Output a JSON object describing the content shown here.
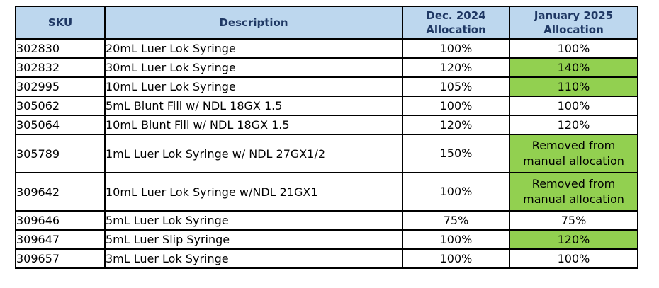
{
  "table": {
    "colors": {
      "header_bg": "#BDD7EE",
      "header_text": "#1F3864",
      "highlight_green": "#92D050",
      "border": "#000000"
    },
    "headers": {
      "sku": "SKU",
      "description": "Description",
      "dec": "Dec. 2024\nAllocation",
      "jan": "January 2025\nAllocation"
    },
    "rows": [
      {
        "sku": "302830",
        "description": "20mL Luer Lok Syringe",
        "dec": "100%",
        "jan": "100%",
        "jan_highlight": false,
        "tall": false
      },
      {
        "sku": "302832",
        "description": "30mL Luer Lok Syringe",
        "dec": "120%",
        "jan": "140%",
        "jan_highlight": true,
        "tall": false
      },
      {
        "sku": "302995",
        "description": "10mL Luer Lok Syringe",
        "dec": "105%",
        "jan": "110%",
        "jan_highlight": true,
        "tall": false
      },
      {
        "sku": "305062",
        "description": "5mL Blunt Fill w/ NDL 18GX 1.5",
        "dec": "100%",
        "jan": "100%",
        "jan_highlight": false,
        "tall": false
      },
      {
        "sku": "305064",
        "description": "10mL Blunt Fill w/ NDL 18GX 1.5",
        "dec": "120%",
        "jan": "120%",
        "jan_highlight": false,
        "tall": false
      },
      {
        "sku": "305789",
        "description": "1mL Luer Lok Syringe w/ NDL 27GX1/2",
        "dec": "150%",
        "jan": "Removed from\nmanual allocation",
        "jan_highlight": true,
        "tall": true
      },
      {
        "sku": "309642",
        "description": "10mL Luer Lok Syringe w/NDL 21GX1",
        "dec": "100%",
        "jan": "Removed from\nmanual allocation",
        "jan_highlight": true,
        "tall": true
      },
      {
        "sku": "309646",
        "description": "5mL Luer Lok Syringe",
        "dec": "75%",
        "jan": "75%",
        "jan_highlight": false,
        "tall": false
      },
      {
        "sku": "309647",
        "description": "5mL Luer Slip Syringe",
        "dec": "100%",
        "jan": "120%",
        "jan_highlight": true,
        "tall": false
      },
      {
        "sku": "309657",
        "description": "3mL Luer Lok Syringe",
        "dec": "100%",
        "jan": "100%",
        "jan_highlight": false,
        "tall": false
      }
    ]
  }
}
